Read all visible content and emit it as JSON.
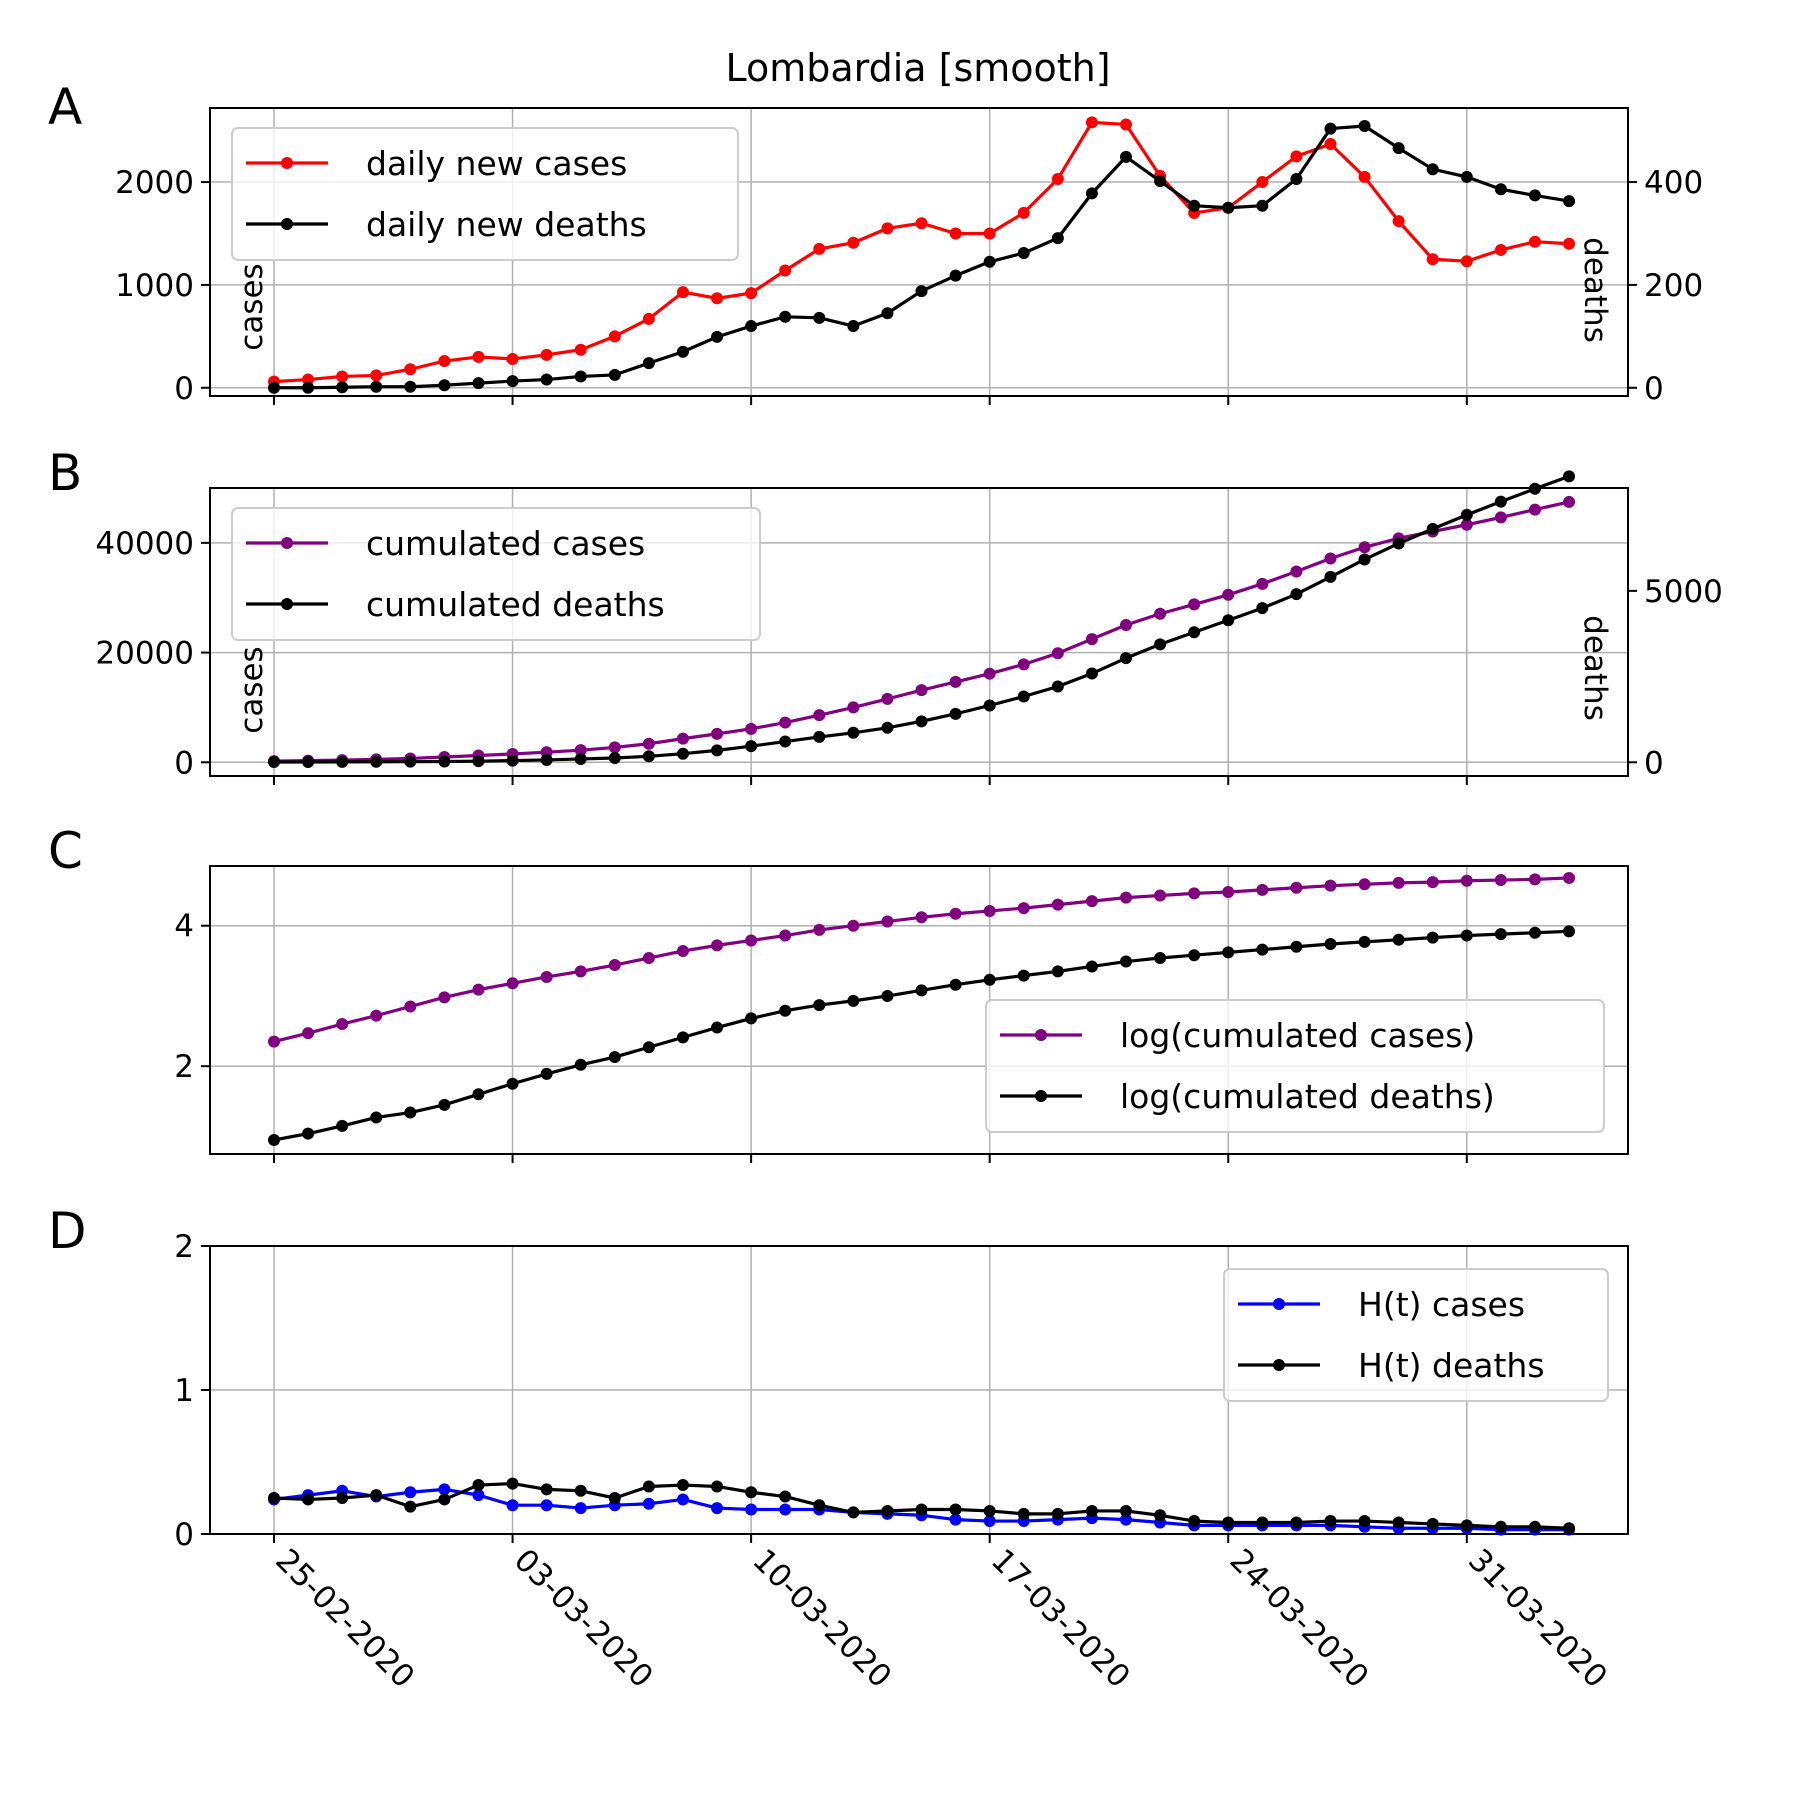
{
  "figure": {
    "title": "Lombardia [smooth]"
  },
  "colors": {
    "cases_daily": "#ff0000",
    "cumulated": "#800080",
    "ht_cases": "#0000ff",
    "deaths": "#000000",
    "grid": "#b0b0b0"
  },
  "x_axis": {
    "type": "date",
    "start": "25-02-2020",
    "tick_labels": [
      "25-02-2020",
      "03-03-2020",
      "10-03-2020",
      "17-03-2020",
      "24-03-2020",
      "31-03-2020"
    ],
    "tick_dates": [
      "25-02-2020",
      "03-03-2020",
      "10-03-2020",
      "17-03-2020",
      "24-03-2020",
      "31-03-2020"
    ]
  },
  "chart_data": [
    {
      "panel": "A",
      "type": "line",
      "title": "Lombardia [smooth]",
      "ylabel": "cases",
      "ylabel_right": "deaths",
      "ylim": [
        -80,
        2720
      ],
      "ylim_right": [
        -16,
        544
      ],
      "yticks": [
        0,
        1000,
        2000
      ],
      "yticks_right": [
        0,
        200,
        400
      ],
      "grid": true,
      "legend": "upper-left",
      "x": [
        "25-02-2020",
        "26-02-2020",
        "27-02-2020",
        "28-02-2020",
        "29-02-2020",
        "01-03-2020",
        "02-03-2020",
        "03-03-2020",
        "04-03-2020",
        "05-03-2020",
        "06-03-2020",
        "07-03-2020",
        "08-03-2020",
        "09-03-2020",
        "10-03-2020",
        "11-03-2020",
        "12-03-2020",
        "13-03-2020",
        "14-03-2020",
        "15-03-2020",
        "16-03-2020",
        "17-03-2020",
        "18-03-2020",
        "19-03-2020",
        "20-03-2020",
        "21-03-2020",
        "22-03-2020",
        "23-03-2020",
        "24-03-2020",
        "25-03-2020",
        "26-03-2020",
        "27-03-2020",
        "28-03-2020",
        "29-03-2020",
        "30-03-2020",
        "31-03-2020",
        "01-04-2020",
        "02-04-2020",
        "03-04-2020"
      ],
      "series": [
        {
          "name": "daily new cases",
          "axis": "left",
          "values": [
            60,
            80,
            110,
            120,
            180,
            260,
            300,
            280,
            320,
            370,
            500,
            670,
            930,
            870,
            920,
            1140,
            1350,
            1410,
            1550,
            1600,
            1500,
            1500,
            1700,
            2030,
            2580,
            2560,
            2060,
            1700,
            1750,
            2000,
            2250,
            2370,
            2050,
            1620,
            1250,
            1230,
            1340,
            1420,
            1400
          ]
        },
        {
          "name": "daily new deaths",
          "axis": "right",
          "values": [
            0,
            0,
            1,
            2,
            2,
            5,
            9,
            13,
            16,
            22,
            25,
            48,
            70,
            99,
            120,
            138,
            136,
            120,
            145,
            188,
            218,
            245,
            262,
            291,
            378,
            449,
            402,
            354,
            350,
            354,
            406,
            504,
            509,
            466,
            425,
            410,
            386,
            374,
            363
          ]
        }
      ]
    },
    {
      "panel": "B",
      "type": "line",
      "ylabel": "cases",
      "ylabel_right": "deaths",
      "ylim": [
        -2500,
        50000
      ],
      "ylim_right": [
        -400,
        8000
      ],
      "yticks": [
        0,
        20000,
        40000
      ],
      "yticks_right": [
        0,
        5000
      ],
      "grid": true,
      "legend": "upper-left",
      "series": [
        {
          "name": "cumulated cases",
          "axis": "left",
          "values": [
            220,
            300,
            400,
            530,
            700,
            960,
            1240,
            1520,
            1840,
            2210,
            2710,
            3380,
            4310,
            5180,
            6100,
            7240,
            8590,
            10000,
            11550,
            13150,
            14650,
            16150,
            17850,
            19880,
            22460,
            25020,
            27080,
            28780,
            30530,
            32530,
            34780,
            37150,
            39200,
            40820,
            42070,
            43300,
            44640,
            46060,
            47460
          ]
        },
        {
          "name": "cumulated deaths",
          "axis": "right",
          "values": [
            9,
            9,
            11,
            15,
            18,
            24,
            32,
            50,
            68,
            97,
            125,
            175,
            250,
            348,
            470,
            605,
            740,
            860,
            1006,
            1194,
            1412,
            1657,
            1919,
            2210,
            2588,
            3037,
            3439,
            3793,
            4143,
            4497,
            4903,
            5407,
            5916,
            6382,
            6807,
            7217,
            7603,
            7977,
            8340
          ]
        }
      ]
    },
    {
      "panel": "C",
      "type": "line",
      "ylim": [
        0.75,
        4.85
      ],
      "yticks": [
        2,
        4
      ],
      "grid": true,
      "legend": "center-right",
      "series": [
        {
          "name": "log(cumulated cases)",
          "values": [
            2.35,
            2.47,
            2.6,
            2.72,
            2.85,
            2.98,
            3.09,
            3.18,
            3.27,
            3.35,
            3.44,
            3.54,
            3.64,
            3.72,
            3.79,
            3.86,
            3.94,
            4.0,
            4.06,
            4.12,
            4.17,
            4.21,
            4.25,
            4.3,
            4.35,
            4.4,
            4.43,
            4.46,
            4.48,
            4.51,
            4.54,
            4.57,
            4.59,
            4.61,
            4.62,
            4.64,
            4.65,
            4.66,
            4.68
          ]
        },
        {
          "name": "log(cumulated deaths)",
          "values": [
            0.95,
            1.04,
            1.15,
            1.27,
            1.34,
            1.45,
            1.6,
            1.75,
            1.89,
            2.02,
            2.13,
            2.27,
            2.41,
            2.55,
            2.68,
            2.79,
            2.87,
            2.93,
            3.0,
            3.08,
            3.16,
            3.23,
            3.29,
            3.35,
            3.42,
            3.49,
            3.54,
            3.58,
            3.62,
            3.66,
            3.7,
            3.74,
            3.77,
            3.8,
            3.83,
            3.86,
            3.88,
            3.9,
            3.92
          ]
        }
      ]
    },
    {
      "panel": "D",
      "type": "line",
      "ylim": [
        0,
        2
      ],
      "yticks": [
        0,
        1,
        2
      ],
      "grid": true,
      "legend": "upper-right",
      "series": [
        {
          "name": "H(t) cases",
          "values": [
            0.24,
            0.27,
            0.3,
            0.26,
            0.29,
            0.31,
            0.27,
            0.2,
            0.2,
            0.18,
            0.2,
            0.21,
            0.24,
            0.18,
            0.17,
            0.17,
            0.17,
            0.15,
            0.14,
            0.13,
            0.1,
            0.09,
            0.09,
            0.1,
            0.11,
            0.1,
            0.08,
            0.06,
            0.06,
            0.06,
            0.06,
            0.06,
            0.05,
            0.04,
            0.04,
            0.04,
            0.03,
            0.03,
            0.03
          ]
        },
        {
          "name": "H(t) deaths",
          "values": [
            0.25,
            0.24,
            0.25,
            0.27,
            0.19,
            0.24,
            0.34,
            0.35,
            0.31,
            0.3,
            0.25,
            0.33,
            0.34,
            0.33,
            0.29,
            0.26,
            0.2,
            0.15,
            0.16,
            0.17,
            0.17,
            0.16,
            0.14,
            0.14,
            0.16,
            0.16,
            0.13,
            0.09,
            0.08,
            0.08,
            0.08,
            0.09,
            0.09,
            0.08,
            0.07,
            0.06,
            0.05,
            0.05,
            0.04
          ]
        }
      ]
    }
  ]
}
